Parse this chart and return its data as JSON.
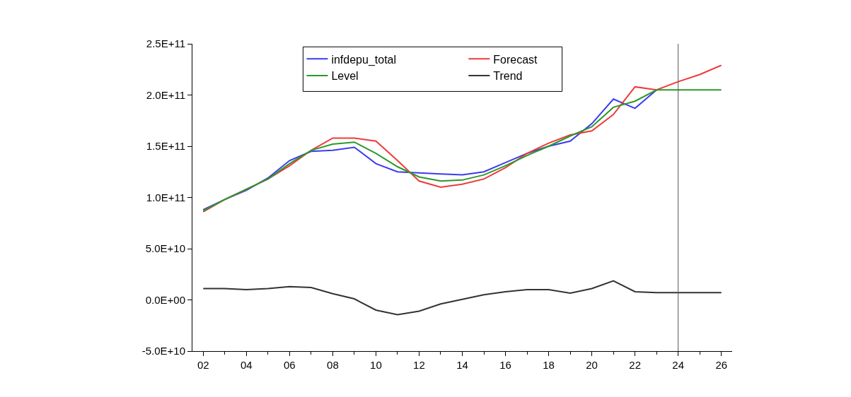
{
  "chart_data": {
    "type": "line",
    "x": [
      2002,
      2003,
      2004,
      2005,
      2006,
      2007,
      2008,
      2009,
      2010,
      2011,
      2012,
      2013,
      2014,
      2015,
      2016,
      2017,
      2018,
      2019,
      2020,
      2021,
      2022,
      2023,
      2024,
      2025,
      2026
    ],
    "series": [
      {
        "name": "infdepu_total",
        "color": "#3b3bf0",
        "values": [
          88000000000,
          98000000000,
          107000000000,
          119000000000,
          136000000000,
          145000000000,
          146000000000,
          149000000000,
          133000000000,
          125000000000,
          124000000000,
          123000000000,
          122000000000,
          125000000000,
          134000000000,
          143000000000,
          150000000000,
          155000000000,
          172000000000,
          196000000000,
          187000000000,
          205000000000,
          null,
          null,
          null
        ]
      },
      {
        "name": "Forecast",
        "color": "#f03a3a",
        "values": [
          86000000000,
          98000000000,
          108000000000,
          118000000000,
          131000000000,
          146000000000,
          158000000000,
          158000000000,
          155000000000,
          136000000000,
          116000000000,
          110000000000,
          113000000000,
          118000000000,
          129000000000,
          143000000000,
          153000000000,
          161000000000,
          165000000000,
          181000000000,
          208000000000,
          205000000000,
          213000000000,
          220000000000,
          229000000000
        ]
      },
      {
        "name": "Level",
        "color": "#2a9a2a",
        "values": [
          87000000000,
          98000000000,
          108000000000,
          118000000000,
          133000000000,
          146000000000,
          152000000000,
          154000000000,
          143000000000,
          130000000000,
          120000000000,
          116000000000,
          117000000000,
          122000000000,
          131000000000,
          141000000000,
          150000000000,
          160000000000,
          169000000000,
          188000000000,
          194000000000,
          205000000000,
          205000000000,
          205000000000,
          205000000000
        ]
      },
      {
        "name": "Trend",
        "color": "#333333",
        "values": [
          11000000000,
          11000000000,
          10000000000,
          11000000000,
          13000000000,
          12000000000,
          6000000000,
          1000000000,
          -10000000000,
          -14500000000,
          -11000000000,
          -4000000000,
          500000000,
          5000000000,
          8000000000,
          10000000000,
          10000000000,
          6500000000,
          11000000000,
          18500000000,
          8000000000,
          7000000000,
          7000000000,
          7000000000,
          7000000000
        ]
      }
    ],
    "xlim": [
      2001.5,
      2026.5
    ],
    "xticks": [
      {
        "value": 2002,
        "label": "02"
      },
      {
        "value": 2004,
        "label": "04"
      },
      {
        "value": 2006,
        "label": "06"
      },
      {
        "value": 2008,
        "label": "08"
      },
      {
        "value": 2010,
        "label": "10"
      },
      {
        "value": 2012,
        "label": "12"
      },
      {
        "value": 2014,
        "label": "14"
      },
      {
        "value": 2016,
        "label": "16"
      },
      {
        "value": 2018,
        "label": "18"
      },
      {
        "value": 2020,
        "label": "20"
      },
      {
        "value": 2022,
        "label": "22"
      },
      {
        "value": 2024,
        "label": "24"
      },
      {
        "value": 2026,
        "label": "26"
      }
    ],
    "ylim": [
      -50000000000,
      250000000000
    ],
    "yticks": [
      {
        "value": -50000000000,
        "label": "-5.0E+10"
      },
      {
        "value": 0,
        "label": "0.0E+00"
      },
      {
        "value": 50000000000,
        "label": "5.0E+10"
      },
      {
        "value": 100000000000,
        "label": "1.0E+11"
      },
      {
        "value": 150000000000,
        "label": "1.5E+11"
      },
      {
        "value": 200000000000,
        "label": "2.0E+11"
      },
      {
        "value": 250000000000,
        "label": "2.5E+11"
      }
    ],
    "ref_lines": [
      {
        "axis": "x",
        "value": 2024,
        "color": "#555555"
      }
    ],
    "legend": "top",
    "marker": "none",
    "line_style": "solid"
  }
}
